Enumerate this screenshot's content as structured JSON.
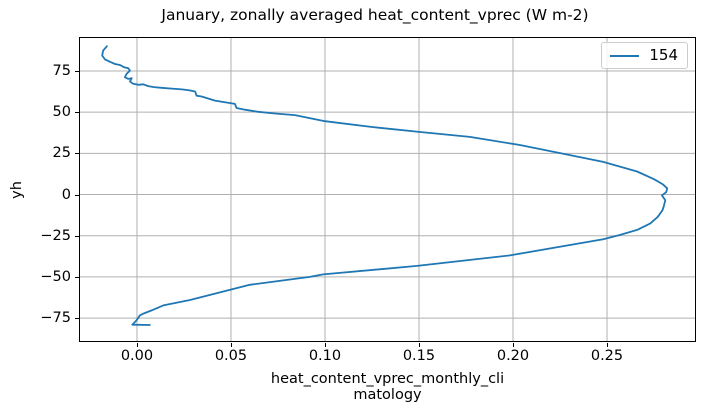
{
  "figure": {
    "background": "#ffffff",
    "spine_color": "#000000"
  },
  "legend": {
    "entries": [
      {
        "label": "154",
        "color": "#1f77b4"
      }
    ]
  },
  "chart_data": {
    "type": "line",
    "title": "January, zonally averaged heat_content_vprec (W m-2)",
    "xlabel_lines": [
      "heat_content_vprec_monthly_cli",
      "matology"
    ],
    "ylabel": "yh",
    "xlim": [
      -0.0303,
      0.2968
    ],
    "ylim": [
      -88.9,
      95.0
    ],
    "grid": true,
    "grid_color": "#b0b0b0",
    "legend_position": "upper right",
    "xticks": {
      "values": [
        0.0,
        0.05,
        0.1,
        0.15,
        0.2,
        0.25
      ],
      "labels": [
        "0.00",
        "0.05",
        "0.10",
        "0.15",
        "0.20",
        "0.25"
      ]
    },
    "yticks": {
      "values": [
        75,
        50,
        25,
        0,
        -25,
        -50,
        -75
      ],
      "labels": [
        "75",
        "50",
        "25",
        "0",
        "−25",
        "−50",
        "−75"
      ]
    },
    "series": [
      {
        "name": "154",
        "color": "#1f77b4",
        "points": [
          [
            -0.016,
            90.0
          ],
          [
            -0.018,
            87.3
          ],
          [
            -0.0185,
            84.3
          ],
          [
            -0.017,
            82.0
          ],
          [
            -0.014,
            80.4
          ],
          [
            -0.0117,
            79.2
          ],
          [
            -0.009,
            78.6
          ],
          [
            -0.0068,
            77.2
          ],
          [
            -0.0046,
            76.6
          ],
          [
            -0.0037,
            75.2
          ],
          [
            -0.0055,
            73.2
          ],
          [
            -0.0064,
            71.2
          ],
          [
            -0.0046,
            70.2
          ],
          [
            -0.0028,
            70.6
          ],
          [
            -0.0037,
            68.6
          ],
          [
            -0.002,
            67.2
          ],
          [
            0.0007,
            66.6
          ],
          [
            0.0034,
            66.9
          ],
          [
            0.006,
            65.8
          ],
          [
            0.009,
            65.2
          ],
          [
            0.013,
            64.8
          ],
          [
            0.0185,
            64.3
          ],
          [
            0.024,
            63.8
          ],
          [
            0.028,
            63.2
          ],
          [
            0.0309,
            62.5
          ],
          [
            0.0317,
            60.0
          ],
          [
            0.0344,
            59.5
          ],
          [
            0.0415,
            57.0
          ],
          [
            0.0521,
            55.0
          ],
          [
            0.053,
            52.5
          ],
          [
            0.0574,
            51.5
          ],
          [
            0.0645,
            50.2
          ],
          [
            0.0734,
            49.2
          ],
          [
            0.084,
            48.2
          ],
          [
            0.1,
            44.5
          ],
          [
            0.125,
            41.0
          ],
          [
            0.15,
            38.0
          ],
          [
            0.177,
            35.0
          ],
          [
            0.204,
            30.0
          ],
          [
            0.23,
            24.0
          ],
          [
            0.248,
            19.8
          ],
          [
            0.266,
            14.0
          ],
          [
            0.275,
            9.3
          ],
          [
            0.2795,
            6.3
          ],
          [
            0.282,
            3.8
          ],
          [
            0.2815,
            1.4
          ],
          [
            0.2792,
            -0.5
          ],
          [
            0.281,
            -3.5
          ],
          [
            0.2802,
            -7.0
          ],
          [
            0.2795,
            -9.5
          ],
          [
            0.277,
            -13.5
          ],
          [
            0.273,
            -17.5
          ],
          [
            0.266,
            -21.5
          ],
          [
            0.257,
            -24.5
          ],
          [
            0.248,
            -27.2
          ],
          [
            0.198,
            -37.0
          ],
          [
            0.149,
            -43.3
          ],
          [
            0.099,
            -48.5
          ],
          [
            0.092,
            -50.0
          ],
          [
            0.06,
            -54.8
          ],
          [
            0.0282,
            -64.0
          ],
          [
            0.014,
            -67.3
          ],
          [
            0.0078,
            -70.3
          ],
          [
            0.0034,
            -72.3
          ],
          [
            0.0016,
            -73.3
          ],
          [
            -0.0002,
            -76.3
          ],
          [
            -0.002,
            -78.5
          ],
          [
            -0.0025,
            -79.0
          ],
          [
            0.0069,
            -79.2
          ]
        ]
      }
    ]
  }
}
